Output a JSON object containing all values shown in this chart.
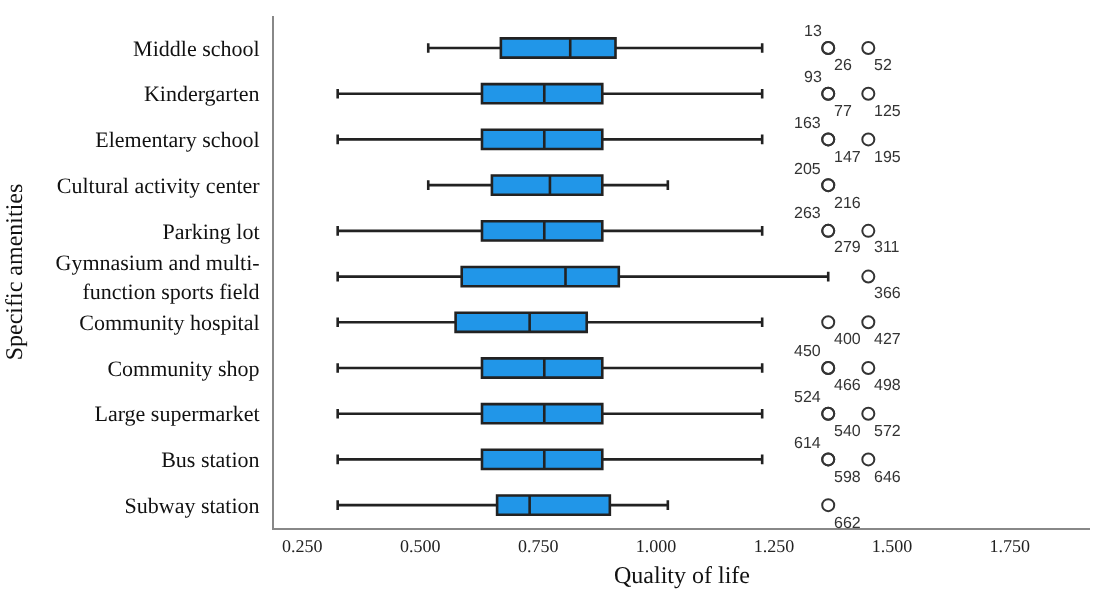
{
  "chart_data": {
    "type": "box",
    "orientation": "horizontal",
    "xlabel": "Quality of life",
    "ylabel": "Specific amenities",
    "categories": [
      "Middle school",
      "Kindergarten",
      "Elementary school",
      "Cultural activity center",
      "Parking lot",
      "Gymnasium and multi-function sports field",
      "Community hospital",
      "Community shop",
      "Large supermarket",
      "Bus station",
      "Subway station"
    ],
    "series": [
      {
        "color": "#2196e8",
        "boxes": [
          {
            "low": 0.517,
            "q1": 0.671,
            "median": 0.818,
            "q3": 0.914,
            "high": 1.225,
            "outliers": [
              1.365,
              1.365,
              1.45
            ]
          },
          {
            "low": 0.325,
            "q1": 0.631,
            "median": 0.763,
            "q3": 0.886,
            "high": 1.225,
            "outliers": [
              1.365,
              1.365,
              1.45
            ]
          },
          {
            "low": 0.325,
            "q1": 0.631,
            "median": 0.763,
            "q3": 0.886,
            "high": 1.225,
            "outliers": [
              1.365,
              1.365,
              1.45
            ]
          },
          {
            "low": 0.517,
            "q1": 0.652,
            "median": 0.775,
            "q3": 0.886,
            "high": 1.025,
            "outliers": [
              1.365,
              1.365
            ]
          },
          {
            "low": 0.325,
            "q1": 0.631,
            "median": 0.763,
            "q3": 0.886,
            "high": 1.225,
            "outliers": [
              1.365,
              1.365,
              1.45
            ]
          },
          {
            "low": 0.325,
            "q1": 0.588,
            "median": 0.808,
            "q3": 0.921,
            "high": 1.365,
            "outliers": [
              1.45
            ]
          },
          {
            "low": 0.325,
            "q1": 0.575,
            "median": 0.732,
            "q3": 0.853,
            "high": 1.225,
            "outliers": [
              1.365,
              1.45
            ]
          },
          {
            "low": 0.325,
            "q1": 0.631,
            "median": 0.763,
            "q3": 0.886,
            "high": 1.225,
            "outliers": [
              1.365,
              1.365,
              1.45
            ]
          },
          {
            "low": 0.325,
            "q1": 0.631,
            "median": 0.763,
            "q3": 0.886,
            "high": 1.225,
            "outliers": [
              1.365,
              1.365,
              1.45
            ]
          },
          {
            "low": 0.325,
            "q1": 0.631,
            "median": 0.763,
            "q3": 0.886,
            "high": 1.225,
            "outliers": [
              1.365,
              1.365,
              1.45
            ]
          },
          {
            "low": 0.325,
            "q1": 0.663,
            "median": 0.732,
            "q3": 0.902,
            "high": 1.025,
            "outliers": [
              1.365
            ]
          }
        ]
      }
    ],
    "xlim": [
      0.19,
      1.92
    ],
    "xticks": [
      {
        "value": 0.25,
        "label": "0.250"
      },
      {
        "value": 0.5,
        "label": "0.500"
      },
      {
        "value": 0.75,
        "label": "0.750"
      },
      {
        "value": 1.0,
        "label": "1.000"
      },
      {
        "value": 1.25,
        "label": "1.250"
      },
      {
        "value": 1.5,
        "label": "1.500"
      },
      {
        "value": 1.75,
        "label": "1.750"
      }
    ],
    "marker": "circle",
    "annotations": [
      "13",
      "26",
      "52",
      "93",
      "77",
      "125",
      "163",
      "147",
      "195",
      "205",
      "216",
      "263",
      "279",
      "311",
      "366",
      "400",
      "427",
      "450",
      "466",
      "498",
      "524",
      "540",
      "572",
      "614",
      "598",
      "646",
      "662"
    ]
  }
}
